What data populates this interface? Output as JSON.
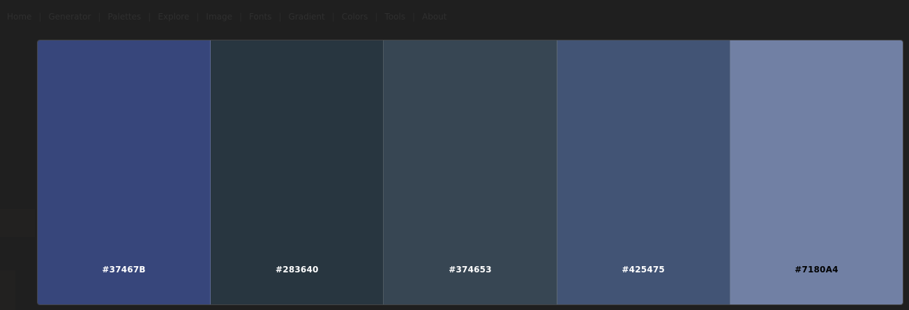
{
  "nav": {
    "items": [
      {
        "label": "Home"
      },
      {
        "label": "Generator"
      },
      {
        "label": "Palettes"
      },
      {
        "label": "Explore"
      },
      {
        "label": "Image"
      },
      {
        "label": "Fonts"
      },
      {
        "label": "Gradient"
      },
      {
        "label": "Colors"
      },
      {
        "label": "Tools"
      },
      {
        "label": "About"
      }
    ]
  },
  "palette": {
    "swatches": [
      {
        "hex": "#37467B",
        "color": "#37467b",
        "text_color": "#ffffff"
      },
      {
        "hex": "#283640",
        "color": "#283640",
        "text_color": "#ffffff"
      },
      {
        "hex": "#374653",
        "color": "#374653",
        "text_color": "#ffffff"
      },
      {
        "hex": "#425475",
        "color": "#425475",
        "text_color": "#ffffff"
      },
      {
        "hex": "#7180A4",
        "color": "#7180a4",
        "text_color": "#000000"
      }
    ]
  }
}
